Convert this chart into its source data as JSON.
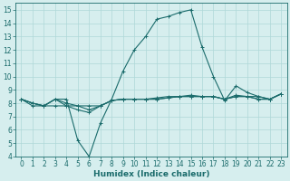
{
  "xlabel": "Humidex (Indice chaleur)",
  "xlim": [
    -0.5,
    23.5
  ],
  "ylim": [
    4,
    15.5
  ],
  "yticks": [
    4,
    5,
    6,
    7,
    8,
    9,
    10,
    11,
    12,
    13,
    14,
    15
  ],
  "xticks": [
    0,
    1,
    2,
    3,
    4,
    5,
    6,
    7,
    8,
    9,
    10,
    11,
    12,
    13,
    14,
    15,
    16,
    17,
    18,
    19,
    20,
    21,
    22,
    23
  ],
  "bg_color": "#d6eeee",
  "grid_color": "#aed8d8",
  "line_color": "#1a6b6b",
  "series": [
    [
      8.3,
      8.0,
      7.8,
      8.3,
      8.3,
      5.2,
      4.0,
      6.5,
      8.3,
      10.4,
      12.0,
      13.0,
      14.3,
      14.5,
      14.8,
      15.0,
      12.2,
      10.0,
      8.2,
      9.3,
      8.8,
      8.5,
      8.3,
      8.7
    ],
    [
      8.3,
      8.0,
      7.8,
      8.3,
      7.8,
      7.5,
      7.3,
      7.8,
      8.2,
      8.3,
      8.3,
      8.3,
      8.3,
      8.4,
      8.5,
      8.5,
      8.5,
      8.5,
      8.3,
      8.5,
      8.5,
      8.3,
      8.3,
      8.7
    ],
    [
      8.3,
      8.0,
      7.8,
      8.3,
      8.0,
      7.8,
      7.5,
      7.8,
      8.2,
      8.3,
      8.3,
      8.3,
      8.4,
      8.5,
      8.5,
      8.6,
      8.5,
      8.5,
      8.3,
      8.6,
      8.5,
      8.3,
      8.3,
      8.7
    ],
    [
      8.3,
      7.8,
      7.8,
      7.8,
      7.8,
      7.8,
      7.8,
      7.8,
      8.2,
      8.3,
      8.3,
      8.3,
      8.3,
      8.4,
      8.5,
      8.5,
      8.5,
      8.5,
      8.3,
      8.5,
      8.5,
      8.5,
      8.3,
      8.7
    ]
  ],
  "linewidth": 0.8,
  "markersize": 3,
  "tick_fontsize": 5.5,
  "xlabel_fontsize": 6.5
}
